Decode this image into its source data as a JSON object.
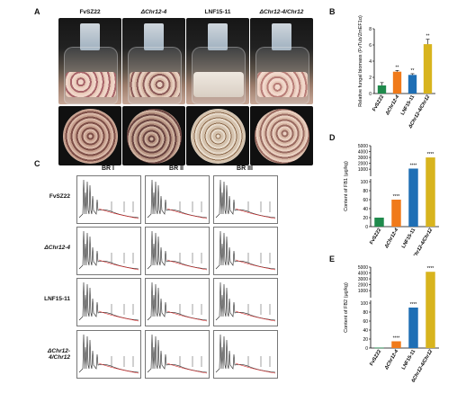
{
  "panels": {
    "A": "A",
    "B": "B",
    "C": "C",
    "D": "D",
    "E": "E"
  },
  "strains": [
    "FvSZ22",
    "ΔChr12-4",
    "LNF15-11",
    "ΔChr12-4/Chr12"
  ],
  "panel_c": {
    "columns": [
      "BR I",
      "BR II",
      "BR III"
    ],
    "rows": [
      "FvSZ22",
      "ΔChr12-4",
      "LNF15-11",
      "ΔChr12-4/Chr12"
    ]
  },
  "colors": {
    "FvSZ22": "#1f8a4c",
    "ΔChr12-4": "#f07a1a",
    "LNF15-11": "#1f6fb5",
    "ΔChr12-4/Chr12": "#d8b41e"
  },
  "chart_data": [
    {
      "panel": "B",
      "type": "bar",
      "ylabel": "Relative fungal biomass (FvTub/ZmEF1α)",
      "ylim": [
        0,
        8
      ],
      "yticks": [
        "0",
        "2",
        "4",
        "6",
        "8"
      ],
      "categories": [
        "FvSZ22",
        "ΔChr12-4",
        "LNF15-11",
        "ΔChr12-4/Chr12"
      ],
      "values": [
        1.0,
        2.7,
        2.3,
        6.1
      ],
      "errors": [
        0.35,
        0.15,
        0.15,
        0.6
      ],
      "annotations": [
        "",
        "**",
        "**",
        "**"
      ]
    },
    {
      "panel": "D",
      "type": "bar",
      "ylabel": "Content of FB1 (μg/kg)",
      "yticks": [
        "0",
        "20",
        "40",
        "60",
        "80",
        "100",
        "1000",
        "2000",
        "3000",
        "4000",
        "5000"
      ],
      "categories": [
        "FvSZ22",
        "ΔChr12-4",
        "LNF15-11",
        "ΔChr12-4/Chr12"
      ],
      "values": [
        20,
        60,
        1100,
        3000
      ],
      "annotations": [
        "",
        "****",
        "****",
        "****"
      ]
    },
    {
      "panel": "E",
      "type": "bar",
      "ylabel": "Content of FB2 (μg/kg)",
      "yticks": [
        "0",
        "20",
        "40",
        "60",
        "80",
        "100",
        "1000",
        "2000",
        "3000",
        "4000",
        "5000"
      ],
      "categories": [
        "FvSZ22",
        "ΔChr12-4",
        "LNF15-11",
        "ΔChr12-4/Chr12"
      ],
      "values": [
        1,
        15,
        90,
        4200
      ],
      "annotations": [
        "",
        "****",
        "****",
        "****"
      ]
    }
  ]
}
